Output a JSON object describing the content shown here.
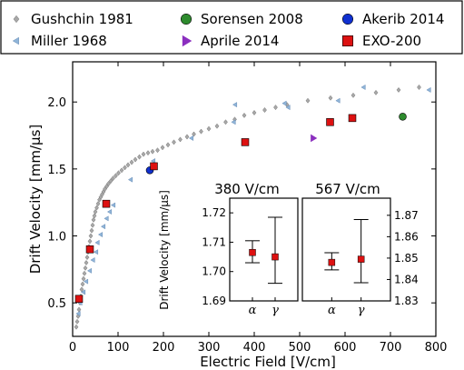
{
  "legend": {
    "entries": [
      {
        "label": "Gushchin 1981",
        "marker": "diamond",
        "color": "#a8a8a8",
        "row": 0,
        "col": 0
      },
      {
        "label": "Sorensen 2008",
        "marker": "circle",
        "color": "#2e8b2e",
        "row": 0,
        "col": 1
      },
      {
        "label": "Akerib 2014",
        "marker": "circle",
        "color": "#1030d0",
        "row": 0,
        "col": 2
      },
      {
        "label": "Miller 1968",
        "marker": "triangle-left",
        "color": "#8fb4d8",
        "row": 1,
        "col": 0
      },
      {
        "label": "Aprile 2014",
        "marker": "triangle-right",
        "color": "#8b2fbf",
        "row": 1,
        "col": 1
      },
      {
        "label": "EXO-200",
        "marker": "square",
        "color": "#dd1111",
        "row": 1,
        "col": 2
      }
    ]
  },
  "chart_data": [
    {
      "type": "scatter",
      "title": "",
      "xlabel": "Electric Field [V/cm]",
      "ylabel": "Drift Velocity [mm/μs]",
      "xlim": [
        0,
        800
      ],
      "ylim": [
        0.25,
        2.3
      ],
      "xticks": [
        "0",
        "100",
        "200",
        "300",
        "400",
        "500",
        "600",
        "700",
        "800"
      ],
      "yticks": [
        "0.5",
        "1.0",
        "1.5",
        "2.0"
      ],
      "series": [
        {
          "name": "Gushchin 1981",
          "marker": "diamond",
          "color": "#a8a8a8",
          "points": [
            [
              8,
              0.32
            ],
            [
              10,
              0.36
            ],
            [
              12,
              0.4
            ],
            [
              14,
              0.45
            ],
            [
              16,
              0.5
            ],
            [
              18,
              0.55
            ],
            [
              20,
              0.6
            ],
            [
              22,
              0.64
            ],
            [
              24,
              0.68
            ],
            [
              26,
              0.72
            ],
            [
              28,
              0.76
            ],
            [
              30,
              0.8
            ],
            [
              32,
              0.84
            ],
            [
              34,
              0.88
            ],
            [
              36,
              0.92
            ],
            [
              38,
              0.96
            ],
            [
              40,
              1.0
            ],
            [
              42,
              1.04
            ],
            [
              44,
              1.08
            ],
            [
              46,
              1.12
            ],
            [
              48,
              1.15
            ],
            [
              50,
              1.18
            ],
            [
              53,
              1.21
            ],
            [
              56,
              1.24
            ],
            [
              59,
              1.27
            ],
            [
              62,
              1.29
            ],
            [
              65,
              1.31
            ],
            [
              68,
              1.33
            ],
            [
              71,
              1.35
            ],
            [
              75,
              1.37
            ],
            [
              79,
              1.39
            ],
            [
              84,
              1.41
            ],
            [
              89,
              1.43
            ],
            [
              95,
              1.45
            ],
            [
              101,
              1.47
            ],
            [
              108,
              1.49
            ],
            [
              115,
              1.51
            ],
            [
              122,
              1.53
            ],
            [
              130,
              1.55
            ],
            [
              138,
              1.57
            ],
            [
              147,
              1.59
            ],
            [
              156,
              1.61
            ],
            [
              166,
              1.62
            ],
            [
              176,
              1.63
            ],
            [
              187,
              1.64
            ],
            [
              198,
              1.66
            ],
            [
              210,
              1.68
            ],
            [
              223,
              1.7
            ],
            [
              237,
              1.72
            ],
            [
              252,
              1.74
            ],
            [
              267,
              1.76
            ],
            [
              283,
              1.78
            ],
            [
              300,
              1.8
            ],
            [
              318,
              1.82
            ],
            [
              337,
              1.85
            ],
            [
              357,
              1.87
            ],
            [
              378,
              1.9
            ],
            [
              400,
              1.92
            ],
            [
              423,
              1.94
            ],
            [
              447,
              1.96
            ],
            [
              472,
              1.98
            ],
            [
              518,
              2.01
            ],
            [
              568,
              2.03
            ],
            [
              618,
              2.05
            ],
            [
              668,
              2.07
            ],
            [
              718,
              2.09
            ],
            [
              763,
              2.11
            ]
          ]
        },
        {
          "name": "Miller 1968",
          "marker": "triangle-left",
          "color": "#8fb4d8",
          "points": [
            [
              13,
              0.42
            ],
            [
              17,
              0.5
            ],
            [
              24,
              0.58
            ],
            [
              30,
              0.66
            ],
            [
              38,
              0.74
            ],
            [
              45,
              0.82
            ],
            [
              52,
              0.88
            ],
            [
              55,
              0.95
            ],
            [
              62,
              1.01
            ],
            [
              68,
              1.07
            ],
            [
              75,
              1.13
            ],
            [
              82,
              1.18
            ],
            [
              90,
              1.23
            ],
            [
              128,
              1.42
            ],
            [
              178,
              1.56
            ],
            [
              262,
              1.73
            ],
            [
              355,
              1.85
            ],
            [
              358,
              1.98
            ],
            [
              467,
              1.99
            ],
            [
              475,
              1.96
            ],
            [
              585,
              2.01
            ],
            [
              641,
              2.11
            ],
            [
              785,
              2.09
            ]
          ]
        },
        {
          "name": "Sorensen 2008",
          "marker": "circle",
          "color": "#2e8b2e",
          "points": [
            [
              727,
              1.89
            ]
          ]
        },
        {
          "name": "Akerib 2014",
          "marker": "circle",
          "color": "#1030d0",
          "points": [
            [
              170,
              1.49
            ]
          ]
        },
        {
          "name": "Aprile 2014",
          "marker": "triangle-right",
          "color": "#8b2fbf",
          "points": [
            [
              530,
              1.73
            ]
          ]
        },
        {
          "name": "EXO-200",
          "marker": "square",
          "color": "#dd1111",
          "points": [
            [
              14,
              0.53
            ],
            [
              38,
              0.9
            ],
            [
              74,
              1.24
            ],
            [
              179,
              1.52
            ],
            [
              380,
              1.7
            ],
            [
              567,
              1.85
            ],
            [
              616,
              1.88
            ]
          ]
        }
      ]
    },
    {
      "type": "scatter",
      "title": "380 V/cm",
      "ylabel": "Drift Velocity [mm/μs]",
      "ylim": [
        1.69,
        1.725
      ],
      "yticks": [
        "1.69",
        "1.70",
        "1.71",
        "1.72"
      ],
      "categories": [
        "α",
        "γ"
      ],
      "series": [
        {
          "name": "",
          "color": "#dd1111",
          "values": [
            1.7065,
            1.705
          ],
          "err_low": [
            1.703,
            1.696
          ],
          "err_high": [
            1.7105,
            1.7185
          ]
        }
      ]
    },
    {
      "type": "scatter",
      "title": "567 V/cm",
      "ylim": [
        1.83,
        1.878
      ],
      "yticks": [
        "1.83",
        "1.84",
        "1.85",
        "1.86",
        "1.87"
      ],
      "categories": [
        "α",
        "γ"
      ],
      "series": [
        {
          "name": "",
          "color": "#dd1111",
          "values": [
            1.848,
            1.8495
          ],
          "err_low": [
            1.8445,
            1.8385
          ],
          "err_high": [
            1.8525,
            1.868
          ]
        }
      ]
    }
  ]
}
